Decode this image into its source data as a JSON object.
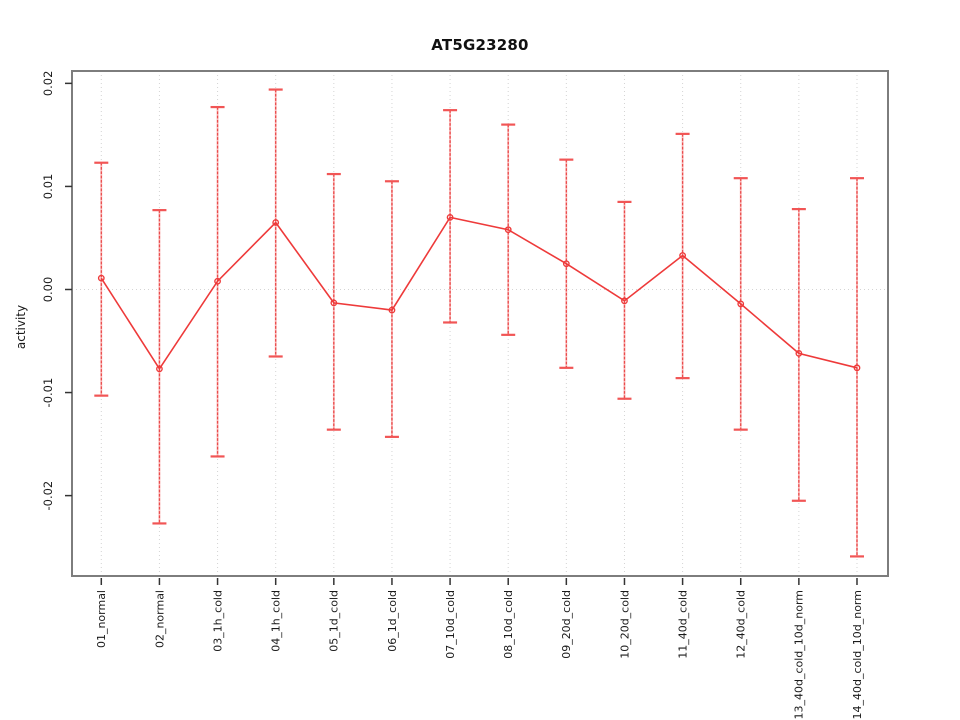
{
  "chart_data": {
    "type": "line",
    "title": "AT5G23280",
    "xlabel": "",
    "ylabel": "activity",
    "legend": "none",
    "grid": "dotted vertical gridline at every category; dotted horizontal gridline at y=0",
    "marker": "open-circle",
    "error_bars": "dashed vertical whiskers with horizontal caps",
    "categories": [
      "01_normal",
      "02_normal",
      "03_1h_cold",
      "04_1h_cold",
      "05_1d_cold",
      "06_1d_cold",
      "07_10d_cold",
      "08_10d_cold",
      "09_20d_cold",
      "10_20d_cold",
      "11_40d_cold",
      "12_40d_cold",
      "13_40d_cold_10d_norm",
      "14_40d_cold_10d_norm"
    ],
    "values": [
      0.0011,
      -0.0077,
      0.0008,
      0.0065,
      -0.0013,
      -0.002,
      0.007,
      0.0058,
      0.0025,
      -0.0011,
      0.0033,
      -0.0014,
      -0.0062,
      -0.0076
    ],
    "error_high": [
      0.0123,
      0.0077,
      0.0177,
      0.0194,
      0.0112,
      0.0105,
      0.0174,
      0.016,
      0.0126,
      0.0085,
      0.0151,
      0.0108,
      0.0078,
      0.0108
    ],
    "error_low": [
      -0.0103,
      -0.0227,
      -0.0162,
      -0.0065,
      -0.0136,
      -0.0143,
      -0.0032,
      -0.0044,
      -0.0076,
      -0.0106,
      -0.0086,
      -0.0136,
      -0.0205,
      -0.0259
    ],
    "yticks": [
      -0.02,
      -0.01,
      0,
      0.01,
      0.02
    ],
    "ytick_labels": [
      "-0.02",
      "-0.01",
      "0.00",
      "0.01",
      "0.02"
    ],
    "ylim": [
      -0.0278,
      0.0212
    ],
    "colors": {
      "series_line": "#ee3a3a",
      "marker_stroke": "#ee3a3a",
      "errorbar_base": "#f9b6b6",
      "errorbar_dash": "#ea4b4b",
      "errorbar_cap": "#f15555",
      "gridline": "#d4d4d4",
      "plot_border": "#7d7d7d",
      "tick_mark": "#333333",
      "text": "#1a1a1a"
    }
  }
}
